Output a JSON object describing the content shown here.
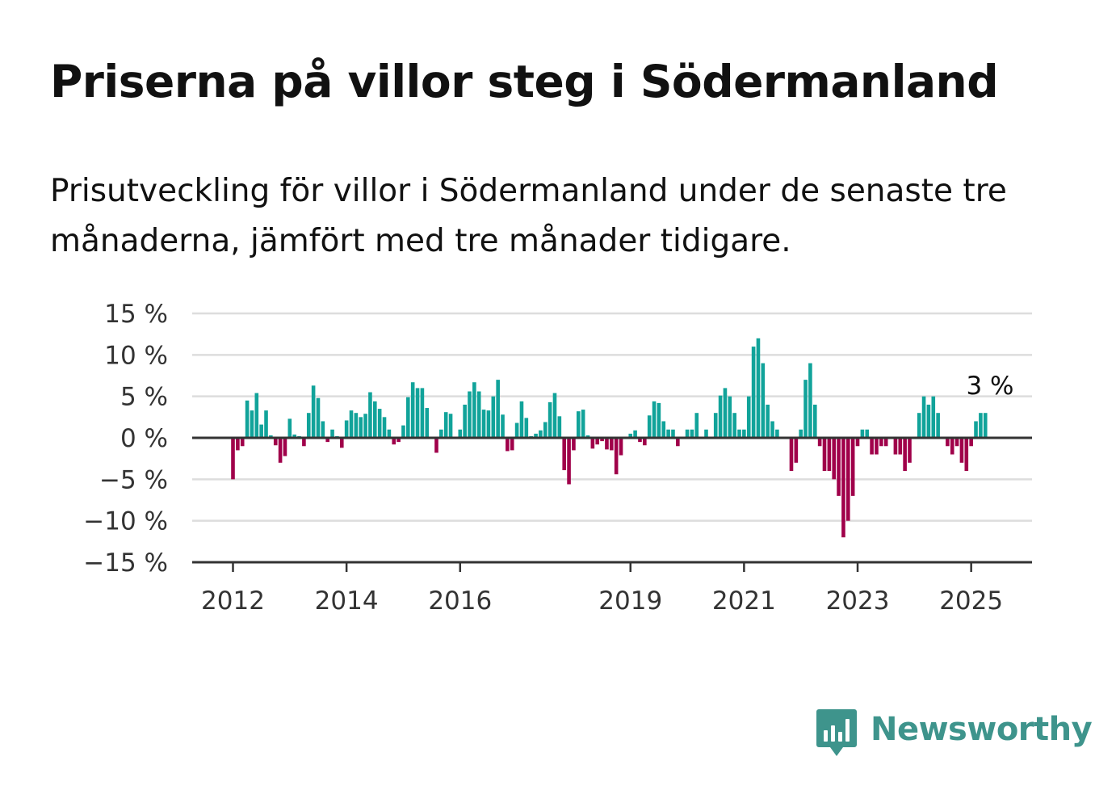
{
  "header": {
    "title": "Priserna på villor steg i Södermanland",
    "subtitle": "Prisutveckling för villor i Södermanland under de senaste tre månaderna, jämfört med tre månader tidigare."
  },
  "chart_data": {
    "type": "bar",
    "x_start": "2012-01",
    "x_end": "2025-05",
    "x_step": "month",
    "ylim": [
      -15,
      15
    ],
    "yticks": [
      15,
      10,
      5,
      0,
      -5,
      -10,
      -15
    ],
    "ytick_labels": [
      "15 %",
      "10 %",
      "5 %",
      "0 %",
      "−5 %",
      "−10 %",
      "−15 %"
    ],
    "xticks": [
      "2012",
      "2014",
      "2016",
      "2019",
      "2021",
      "2023",
      "2025"
    ],
    "grid": true,
    "positive_color": "#11a39a",
    "negative_color": "#a0004a",
    "last_value_label": "3 %",
    "values": [
      -5,
      -1.5,
      -1,
      4.5,
      3.3,
      5.4,
      1.6,
      3.3,
      0.3,
      -0.9,
      -3,
      -2.2,
      2.3,
      0.4,
      0.2,
      -1,
      3,
      6.3,
      4.8,
      2,
      -0.5,
      1,
      0.2,
      -1.2,
      2.1,
      3.3,
      3,
      2.5,
      2.9,
      5.5,
      4.4,
      3.5,
      2.5,
      1,
      -0.8,
      -0.5,
      1.5,
      4.9,
      6.7,
      6,
      6,
      3.6,
      0.1,
      -1.8,
      1,
      3.1,
      2.9,
      0.1,
      1,
      4,
      5.6,
      6.7,
      5.6,
      3.4,
      3.3,
      5,
      7,
      2.8,
      -1.6,
      -1.5,
      1.8,
      4.4,
      2.4,
      0.2,
      0.5,
      0.9,
      1.9,
      4.3,
      5.4,
      2.6,
      -3.9,
      -5.6,
      -1.5,
      3.2,
      3.4,
      0.3,
      -1.3,
      -0.8,
      -0.4,
      -1.4,
      -1.5,
      -4.4,
      -2.1,
      0.1,
      0.5,
      0.9,
      -0.5,
      -0.9,
      2.7,
      4.4,
      4.2,
      2,
      1,
      1,
      -1,
      0.1,
      1,
      1,
      3,
      0.1,
      1,
      0.1,
      3,
      5.1,
      6,
      5,
      3,
      1,
      1,
      5,
      11,
      12,
      9,
      4,
      2,
      1,
      0.1,
      0.1,
      -4,
      -3,
      1,
      7,
      9,
      4,
      -1,
      -4,
      -4,
      -5,
      -7,
      -12,
      -10,
      -7,
      -1,
      1,
      1,
      -2,
      -2,
      -1,
      -1,
      0.1,
      -2,
      -2,
      -4,
      -3,
      0.1,
      3,
      5,
      4,
      5,
      3,
      0.1,
      -1,
      -2,
      -1,
      -3,
      -4,
      -1,
      2,
      3,
      3
    ]
  },
  "brand": {
    "name": "Newsworthy",
    "icon": "newsworthy-logo-icon",
    "color": "#3e948c"
  }
}
